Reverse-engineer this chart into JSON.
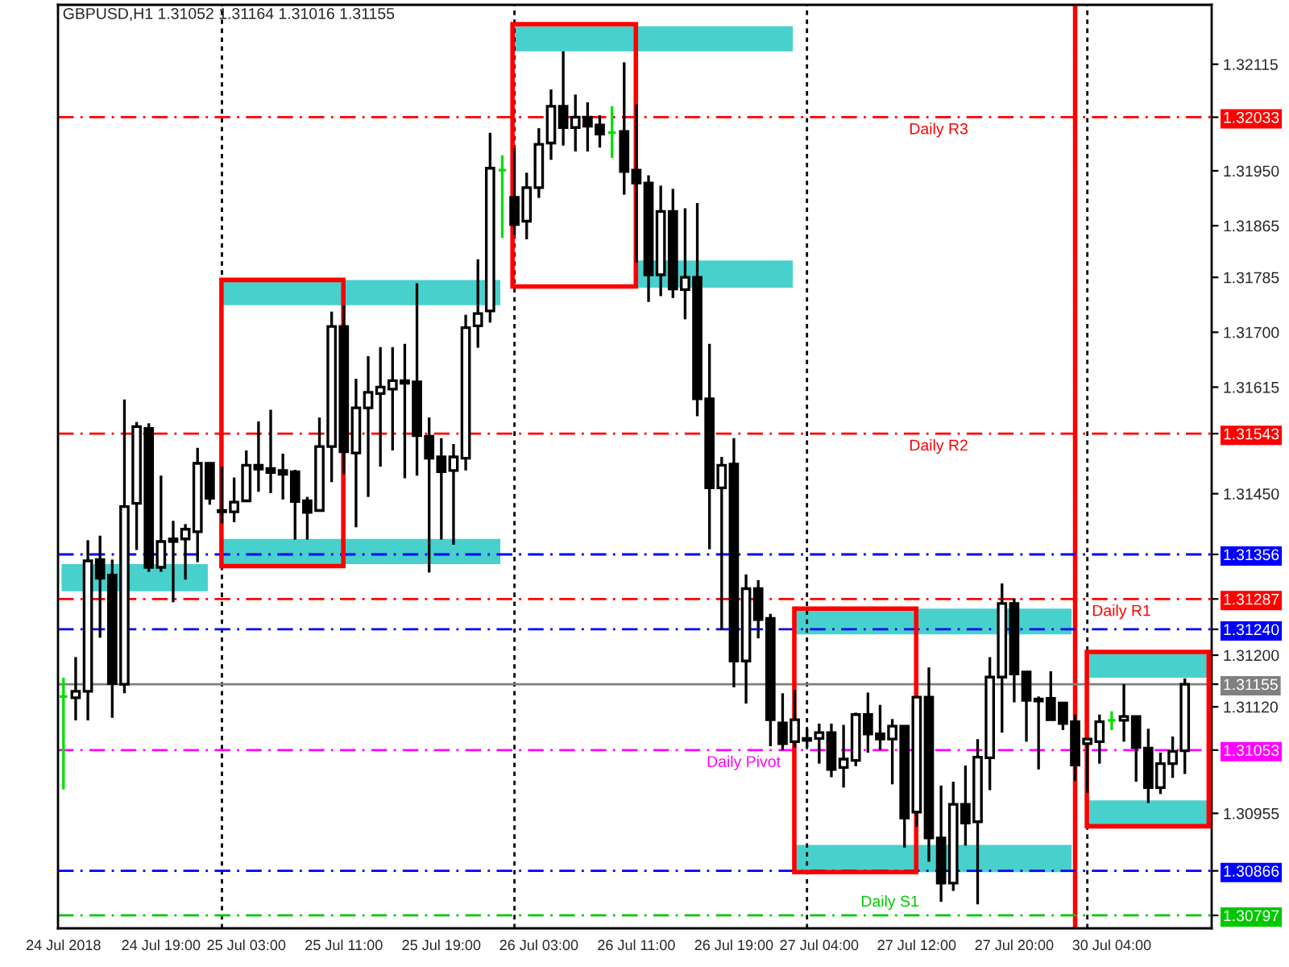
{
  "chart_data": {
    "type": "candlestick",
    "title": "GBPUSD,H1 1.31052 1.31164 1.31016 1.31155",
    "categories": [
      "24 Jul 2018",
      null,
      null,
      null,
      null,
      null,
      null,
      null,
      "24 Jul 19:00",
      null,
      null,
      null,
      null,
      null,
      null,
      "25 Jul 03:00",
      null,
      null,
      null,
      null,
      null,
      null,
      null,
      "25 Jul 11:00",
      null,
      null,
      null,
      null,
      null,
      null,
      null,
      "25 Jul 19:00",
      null,
      null,
      null,
      null,
      null,
      null,
      null,
      "26 Jul 03:00",
      null,
      null,
      null,
      null,
      null,
      null,
      null,
      "26 Jul 11:00",
      null,
      null,
      null,
      null,
      null,
      null,
      null,
      "26 Jul 19:00",
      null,
      null,
      null,
      null,
      null,
      null,
      "27 Jul 04:00",
      null,
      null,
      null,
      null,
      null,
      null,
      null,
      "27 Jul 12:00",
      null,
      null,
      null,
      null,
      null,
      null,
      null,
      "27 Jul 20:00",
      null,
      null,
      null,
      null,
      null,
      null,
      null,
      "30 Jul 04:00",
      null,
      null,
      null,
      null,
      null,
      null
    ],
    "ohlc": [
      [
        1.31136,
        1.31165,
        1.30992,
        1.31136
      ],
      [
        1.31134,
        1.31197,
        1.31099,
        1.31144
      ],
      [
        1.31144,
        1.31378,
        1.31099,
        1.31346
      ],
      [
        1.31348,
        1.31385,
        1.31227,
        1.31319
      ],
      [
        1.31324,
        1.31348,
        1.31103,
        1.31156
      ],
      [
        1.31155,
        1.31596,
        1.31141,
        1.3143
      ],
      [
        1.31435,
        1.31561,
        1.31363,
        1.31554
      ],
      [
        1.31551,
        1.31559,
        1.31329,
        1.31336
      ],
      [
        1.31336,
        1.31478,
        1.31329,
        1.31376
      ],
      [
        1.31376,
        1.31408,
        1.31282,
        1.3138
      ],
      [
        1.3138,
        1.31403,
        1.31317,
        1.31395
      ],
      [
        1.31391,
        1.31521,
        1.31344,
        1.31497
      ],
      [
        1.31497,
        1.31497,
        1.31433,
        1.31443
      ],
      [
        1.31424,
        1.31492,
        1.31404,
        1.31422
      ],
      [
        1.31422,
        1.31475,
        1.31406,
        1.31437
      ],
      [
        1.31439,
        1.31517,
        1.31439,
        1.31494
      ],
      [
        1.31494,
        1.31562,
        1.31453,
        1.31488
      ],
      [
        1.31489,
        1.3158,
        1.31451,
        1.31483
      ],
      [
        1.31486,
        1.31512,
        1.31441,
        1.3148
      ],
      [
        1.31484,
        1.31487,
        1.31379,
        1.31438
      ],
      [
        1.31439,
        1.31445,
        1.31379,
        1.31421
      ],
      [
        1.31424,
        1.31568,
        1.31422,
        1.31523
      ],
      [
        1.31523,
        1.31732,
        1.31468,
        1.31709
      ],
      [
        1.31709,
        1.31742,
        1.3148,
        1.31515
      ],
      [
        1.31513,
        1.31628,
        1.31398,
        1.31583
      ],
      [
        1.31583,
        1.31663,
        1.31445,
        1.31607
      ],
      [
        1.31605,
        1.31677,
        1.31492,
        1.31615
      ],
      [
        1.31612,
        1.31677,
        1.31517,
        1.31625
      ],
      [
        1.31625,
        1.31682,
        1.31474,
        1.31621
      ],
      [
        1.31623,
        1.31776,
        1.31478,
        1.3154
      ],
      [
        1.31539,
        1.31568,
        1.31328,
        1.31505
      ],
      [
        1.31507,
        1.31536,
        1.31379,
        1.31484
      ],
      [
        1.31486,
        1.31527,
        1.31371,
        1.31507
      ],
      [
        1.31505,
        1.31727,
        1.31486,
        1.31707
      ],
      [
        1.3171,
        1.31813,
        1.31676,
        1.31729
      ],
      [
        1.31733,
        1.32009,
        1.31715,
        1.31954
      ],
      [
        1.31951,
        1.31974,
        1.31846,
        1.31951
      ],
      [
        1.31909,
        1.31985,
        1.31851,
        1.31867
      ],
      [
        1.31872,
        1.31947,
        1.31844,
        1.31924
      ],
      [
        1.31924,
        1.32016,
        1.31908,
        1.31991
      ],
      [
        1.31993,
        1.32076,
        1.31967,
        1.3205
      ],
      [
        1.3205,
        1.32135,
        1.31989,
        1.32017
      ],
      [
        1.32017,
        1.32068,
        1.3198,
        1.32033
      ],
      [
        1.32033,
        1.32056,
        1.3198,
        1.32019
      ],
      [
        1.32021,
        1.32036,
        1.31986,
        1.32007
      ],
      [
        1.32009,
        1.3205,
        1.3197,
        1.32009
      ],
      [
        1.32011,
        1.32118,
        1.31913,
        1.31949
      ],
      [
        1.31951,
        1.32053,
        1.31808,
        1.31931
      ],
      [
        1.31931,
        1.31943,
        1.31747,
        1.31789
      ],
      [
        1.31789,
        1.31927,
        1.31756,
        1.31887
      ],
      [
        1.31887,
        1.31922,
        1.31753,
        1.31767
      ],
      [
        1.31766,
        1.31892,
        1.3172,
        1.31785
      ],
      [
        1.31785,
        1.319,
        1.3157,
        1.31597
      ],
      [
        1.31597,
        1.31682,
        1.31364,
        1.31459
      ],
      [
        1.31459,
        1.31507,
        1.31239,
        1.31494
      ],
      [
        1.31496,
        1.31536,
        1.3115,
        1.31191
      ],
      [
        1.31191,
        1.31325,
        1.31125,
        1.31303
      ],
      [
        1.31303,
        1.31316,
        1.31226,
        1.31255
      ],
      [
        1.31257,
        1.31264,
        1.31059,
        1.311
      ],
      [
        1.31095,
        1.31141,
        1.31053,
        1.31063
      ],
      [
        1.31066,
        1.31146,
        1.31057,
        1.311
      ],
      [
        1.31071,
        1.31086,
        1.31057,
        1.31068
      ],
      [
        1.31071,
        1.31094,
        1.31032,
        1.3108
      ],
      [
        1.3108,
        1.31094,
        1.31011,
        1.31023
      ],
      [
        1.31026,
        1.31092,
        1.30995,
        1.31039
      ],
      [
        1.31037,
        1.31111,
        1.31028,
        1.31108
      ],
      [
        1.31108,
        1.31142,
        1.31049,
        1.31078
      ],
      [
        1.31078,
        1.31123,
        1.31053,
        1.3107
      ],
      [
        1.3107,
        1.31101,
        1.31,
        1.3109
      ],
      [
        1.3109,
        1.3109,
        1.30902,
        1.30948
      ],
      [
        1.30957,
        1.31135,
        1.30934,
        1.31135
      ],
      [
        1.31135,
        1.31181,
        1.3088,
        1.30917
      ],
      [
        1.30917,
        1.30998,
        1.30818,
        1.30847
      ],
      [
        1.30847,
        1.31004,
        1.30835,
        1.30969
      ],
      [
        1.30969,
        1.31029,
        1.30905,
        1.3094
      ],
      [
        1.30942,
        1.3107,
        1.30814,
        1.31042
      ],
      [
        1.31041,
        1.31197,
        1.30991,
        1.31166
      ],
      [
        1.31166,
        1.31311,
        1.3108,
        1.3128
      ],
      [
        1.3128,
        1.31288,
        1.31127,
        1.31171
      ],
      [
        1.31174,
        1.31174,
        1.31066,
        1.3113
      ],
      [
        1.31132,
        1.31136,
        1.31023,
        1.31129
      ],
      [
        1.31133,
        1.31175,
        1.311,
        1.311
      ],
      [
        1.31126,
        1.31126,
        1.31084,
        1.31094
      ],
      [
        1.31097,
        1.31108,
        1.31005,
        1.3103
      ],
      [
        1.31063,
        1.3107,
        1.30987,
        1.3107
      ],
      [
        1.31066,
        1.31108,
        1.31032,
        1.31097
      ],
      [
        1.31099,
        1.31113,
        1.31084,
        1.31099
      ],
      [
        1.31099,
        1.31155,
        1.31066,
        1.31105
      ],
      [
        1.31105,
        1.31105,
        1.31004,
        1.31057
      ],
      [
        1.31056,
        1.31086,
        1.30971,
        1.30995
      ],
      [
        1.30995,
        1.31049,
        1.30985,
        1.31032
      ],
      [
        1.31032,
        1.31074,
        1.3101,
        1.31051
      ],
      [
        1.31052,
        1.31164,
        1.31016,
        1.31155
      ]
    ],
    "ylim": [
      1.30777,
      1.32207
    ],
    "yticks": [
      1.32115,
      1.32033,
      {
        "value": 1.3195,
        "label": "1.31950"
      },
      1.31865,
      1.31785,
      {
        "value": 1.317,
        "label": "1.31700"
      },
      1.31615,
      1.31543,
      {
        "value": 1.3145,
        "label": "1.31450"
      },
      1.31356,
      1.31287,
      {
        "value": 1.3124,
        "label": "1.31240"
      },
      {
        "value": 1.312,
        "label": "1.31200"
      },
      1.31155,
      {
        "value": 1.3112,
        "label": "1.31120"
      },
      1.31053,
      1.30955,
      1.30866,
      1.30797
    ],
    "ref_lines": [
      {
        "axis": "y",
        "value": 1.32033,
        "label": "Daily R3",
        "color": "#ff0000",
        "line_style": "dashed"
      },
      {
        "axis": "y",
        "value": 1.31543,
        "label": "Daily R2",
        "color": "#ff0000",
        "line_style": "dashed"
      },
      {
        "axis": "y",
        "value": 1.31356,
        "color": "#0000ff",
        "line_style": "dashed"
      },
      {
        "axis": "y",
        "value": 1.31287,
        "label": "Daily R1",
        "color": "#ff0000",
        "line_style": "dashed"
      },
      {
        "axis": "y",
        "value": 1.3124,
        "color": "#0000ff",
        "line_style": "dashed"
      },
      {
        "axis": "y",
        "value": 1.31155,
        "color": "#808080",
        "line_style": "solid"
      },
      {
        "axis": "y",
        "value": 1.31053,
        "label": "Daily Pivot",
        "color": "#ff00ff",
        "line_style": "dashed"
      },
      {
        "axis": "y",
        "value": 1.30866,
        "color": "#0000ff",
        "line_style": "dashed"
      },
      {
        "axis": "y",
        "value": 1.30797,
        "label": "Daily S1",
        "color": "#00c800",
        "line_style": "dashed"
      }
    ]
  }
}
